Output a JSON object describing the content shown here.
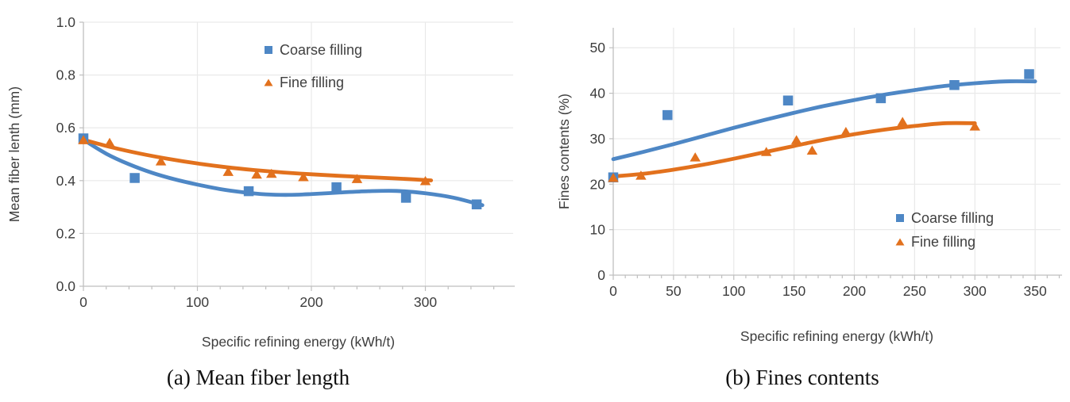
{
  "figure": {
    "background": "#ffffff",
    "captions": {
      "a": "(a) Mean fiber length",
      "b": "(b) Fines contents"
    }
  },
  "colors": {
    "coarse": "#4e87c5",
    "fine": "#e2711d",
    "grid": "#e9e9e9",
    "axis": "#bfbfbf",
    "tick": "#bfbfbf",
    "text": "#3d3d3d"
  },
  "chart_data": [
    {
      "id": "a",
      "type": "scatter",
      "title": "",
      "xlabel": "Specific refining energy (kWh/t)",
      "ylabel": "Mean fiber lenth (mm)",
      "xlim": [
        0,
        377
      ],
      "ylim": [
        0,
        1.0
      ],
      "xticks_major": [
        0,
        100,
        200,
        300
      ],
      "xtick_labels": [
        "0",
        "100",
        "200",
        "300"
      ],
      "xtick_minor_step": 20,
      "xtick_minor_max": 360,
      "yticks": [
        0,
        0.2,
        0.4,
        0.6,
        0.8,
        1.0
      ],
      "ytick_labels": [
        "0.0",
        "0.2",
        "0.4",
        "0.6",
        "0.8",
        "1.0"
      ],
      "grid_x": [
        100,
        200,
        300
      ],
      "grid_on": true,
      "legend": {
        "position": "upper-center",
        "entries": [
          "Coarse filling",
          "Fine filling"
        ]
      },
      "series": [
        {
          "name": "Coarse filling",
          "marker": "square",
          "color": "coarse",
          "points": [
            [
              0,
              0.56
            ],
            [
              45,
              0.41
            ],
            [
              145,
              0.36
            ],
            [
              222,
              0.375
            ],
            [
              283,
              0.335
            ],
            [
              345,
              0.31
            ]
          ],
          "trend": [
            [
              0,
              0.555
            ],
            [
              20,
              0.502
            ],
            [
              40,
              0.462
            ],
            [
              60,
              0.43
            ],
            [
              80,
              0.405
            ],
            [
              100,
              0.385
            ],
            [
              120,
              0.368
            ],
            [
              140,
              0.356
            ],
            [
              160,
              0.348
            ],
            [
              180,
              0.346
            ],
            [
              200,
              0.349
            ],
            [
              225,
              0.355
            ],
            [
              250,
              0.36
            ],
            [
              275,
              0.361
            ],
            [
              300,
              0.352
            ],
            [
              325,
              0.335
            ],
            [
              350,
              0.307
            ]
          ]
        },
        {
          "name": "Fine filling",
          "marker": "triangle",
          "color": "fine",
          "points": [
            [
              0,
              0.555
            ],
            [
              23,
              0.545
            ],
            [
              68,
              0.475
            ],
            [
              127,
              0.435
            ],
            [
              152,
              0.425
            ],
            [
              165,
              0.428
            ],
            [
              193,
              0.415
            ],
            [
              240,
              0.408
            ],
            [
              300,
              0.4
            ]
          ],
          "trend": [
            [
              0,
              0.555
            ],
            [
              25,
              0.526
            ],
            [
              50,
              0.502
            ],
            [
              75,
              0.482
            ],
            [
              100,
              0.465
            ],
            [
              125,
              0.451
            ],
            [
              150,
              0.44
            ],
            [
              175,
              0.431
            ],
            [
              200,
              0.424
            ],
            [
              225,
              0.418
            ],
            [
              250,
              0.413
            ],
            [
              275,
              0.408
            ],
            [
              305,
              0.401
            ]
          ]
        }
      ]
    },
    {
      "id": "b",
      "type": "scatter",
      "title": "",
      "xlabel": "Specific refining energy (kWh/t)",
      "ylabel": "Fines contents (%)",
      "xlim": [
        0,
        371
      ],
      "ylim": [
        0,
        54.4
      ],
      "xticks_major": [
        0,
        50,
        100,
        150,
        200,
        250,
        300,
        350
      ],
      "xtick_labels": [
        "0",
        "50",
        "100",
        "150",
        "200",
        "250",
        "300",
        "350"
      ],
      "xtick_minor_step": 10,
      "xtick_minor_max": 370,
      "yticks": [
        0,
        10,
        20,
        30,
        40,
        50
      ],
      "ytick_labels": [
        "0",
        "10",
        "20",
        "30",
        "40",
        "50"
      ],
      "grid_x": [
        50,
        100,
        150,
        200,
        250,
        300,
        350
      ],
      "grid_on": true,
      "legend": {
        "position": "lower-right",
        "entries": [
          "Coarse filling",
          "Fine filling"
        ]
      },
      "series": [
        {
          "name": "Coarse filling",
          "marker": "square",
          "color": "coarse",
          "points": [
            [
              0,
              21.5
            ],
            [
              45,
              35.2
            ],
            [
              145,
              38.4
            ],
            [
              222,
              38.9
            ],
            [
              283,
              41.8
            ],
            [
              345,
              44.2
            ]
          ],
          "trend": [
            [
              0,
              25.5
            ],
            [
              25,
              27.1
            ],
            [
              50,
              28.8
            ],
            [
              75,
              30.6
            ],
            [
              100,
              32.4
            ],
            [
              125,
              34.1
            ],
            [
              150,
              35.7
            ],
            [
              175,
              37.2
            ],
            [
              200,
              38.5
            ],
            [
              225,
              39.7
            ],
            [
              250,
              40.7
            ],
            [
              275,
              41.6
            ],
            [
              300,
              42.2
            ],
            [
              325,
              42.6
            ],
            [
              350,
              42.6
            ]
          ]
        },
        {
          "name": "Fine filling",
          "marker": "triangle",
          "color": "fine",
          "points": [
            [
              0,
              21.5
            ],
            [
              23,
              22.0
            ],
            [
              68,
              26.0
            ],
            [
              127,
              27.2
            ],
            [
              152,
              29.8
            ],
            [
              165,
              27.5
            ],
            [
              193,
              31.6
            ],
            [
              240,
              33.8
            ],
            [
              300,
              32.8
            ]
          ],
          "trend": [
            [
              0,
              21.7
            ],
            [
              25,
              22.3
            ],
            [
              50,
              23.2
            ],
            [
              75,
              24.3
            ],
            [
              100,
              25.6
            ],
            [
              125,
              27.0
            ],
            [
              150,
              28.4
            ],
            [
              175,
              29.8
            ],
            [
              200,
              31.0
            ],
            [
              225,
              32.0
            ],
            [
              250,
              32.8
            ],
            [
              275,
              33.4
            ],
            [
              300,
              33.4
            ]
          ]
        }
      ]
    }
  ]
}
